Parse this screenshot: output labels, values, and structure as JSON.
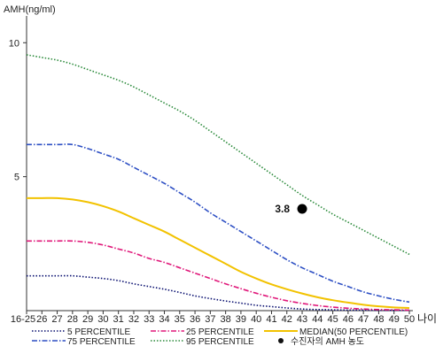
{
  "chart_data": {
    "type": "line",
    "ylabel": "AMH(ng/ml)",
    "xlabel": "나이",
    "x": [
      "16-25",
      "26",
      "27",
      "28",
      "29",
      "30",
      "31",
      "32",
      "33",
      "34",
      "35",
      "36",
      "37",
      "38",
      "39",
      "40",
      "41",
      "42",
      "43",
      "44",
      "45",
      "46",
      "47",
      "48",
      "49",
      "50"
    ],
    "ylim": [
      0,
      11
    ],
    "y_ticks": [
      "10",
      "5"
    ],
    "grid": false,
    "series": [
      {
        "name": "5 PERCENTILE",
        "color": "#0a1070",
        "style": "dotted",
        "values": [
          1.3,
          1.3,
          1.3,
          1.3,
          1.25,
          1.2,
          1.12,
          1.0,
          0.9,
          0.8,
          0.68,
          0.55,
          0.45,
          0.36,
          0.28,
          0.2,
          0.15,
          0.1,
          0.06,
          0.04,
          0.03,
          0.02,
          0.02,
          0.01,
          0.01,
          0.01
        ]
      },
      {
        "name": "25 PERCENTILE",
        "color": "#e0187a",
        "style": "dashdot",
        "values": [
          2.6,
          2.6,
          2.6,
          2.6,
          2.55,
          2.45,
          2.3,
          2.15,
          1.95,
          1.8,
          1.6,
          1.4,
          1.2,
          1.0,
          0.82,
          0.65,
          0.5,
          0.37,
          0.27,
          0.19,
          0.13,
          0.09,
          0.06,
          0.04,
          0.03,
          0.02
        ]
      },
      {
        "name": "75 PERCENTILE",
        "color": "#2d4fc4",
        "style": "dashdot",
        "values": [
          6.2,
          6.2,
          6.2,
          6.2,
          6.05,
          5.85,
          5.65,
          5.35,
          5.05,
          4.75,
          4.4,
          4.05,
          3.65,
          3.3,
          2.95,
          2.6,
          2.25,
          1.9,
          1.6,
          1.35,
          1.1,
          0.9,
          0.7,
          0.55,
          0.42,
          0.32
        ]
      },
      {
        "name": "95 PERCENTILE",
        "color": "#2a8a3a",
        "style": "dotted",
        "values": [
          9.55,
          9.45,
          9.35,
          9.2,
          9.0,
          8.8,
          8.6,
          8.35,
          8.05,
          7.75,
          7.45,
          7.1,
          6.7,
          6.3,
          5.9,
          5.5,
          5.1,
          4.7,
          4.3,
          3.95,
          3.6,
          3.3,
          3.0,
          2.7,
          2.4,
          2.1
        ]
      },
      {
        "name": "MEDIAN(50 PERCENTILE)",
        "color": "#f2c200",
        "style": "solid",
        "values": [
          4.2,
          4.2,
          4.2,
          4.15,
          4.05,
          3.9,
          3.7,
          3.45,
          3.2,
          2.95,
          2.65,
          2.35,
          2.05,
          1.75,
          1.45,
          1.2,
          0.98,
          0.8,
          0.64,
          0.5,
          0.39,
          0.3,
          0.22,
          0.16,
          0.12,
          0.1
        ]
      }
    ],
    "annotations": [
      {
        "x": "43",
        "y": 3.8,
        "label": "3.8",
        "legend": "수진자의 AMH 농도"
      }
    ],
    "legend": {
      "placement": "bottom",
      "items": [
        {
          "label": "5 PERCENTILE",
          "color": "#0a1070",
          "style": "dotted"
        },
        {
          "label": "25 PERCENTILE",
          "color": "#e0187a",
          "style": "dashdot"
        },
        {
          "label": "MEDIAN(50 PERCENTILE)",
          "color": "#f2c200",
          "style": "solid"
        },
        {
          "label": "75 PERCENTILE",
          "color": "#2d4fc4",
          "style": "dashdot"
        },
        {
          "label": "95 PERCENTILE",
          "color": "#2a8a3a",
          "style": "dotted"
        },
        {
          "label": "수진자의 AMH 농도",
          "color": "#111111",
          "style": "marker"
        }
      ]
    }
  }
}
